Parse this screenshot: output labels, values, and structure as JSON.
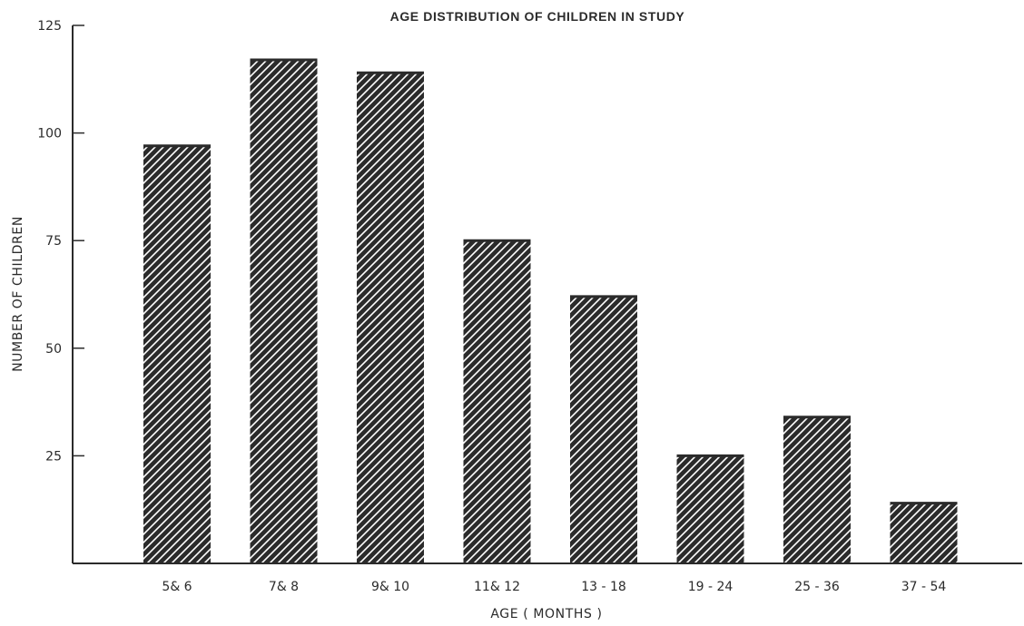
{
  "chart_data": {
    "type": "bar",
    "title": "AGE DISTRIBUTION OF CHILDREN IN STUDY",
    "xlabel": "AGE ( MONTHS )",
    "ylabel": "NUMBER OF CHILDREN",
    "categories": [
      "5& 6",
      "7& 8",
      "9& 10",
      "11& 12",
      "13 - 18",
      "19 - 24",
      "25 - 36",
      "37 - 54"
    ],
    "values": [
      97,
      117,
      114,
      75,
      62,
      25,
      34,
      14
    ],
    "ylim": [
      0,
      125
    ],
    "yticks": [
      25,
      50,
      75,
      100,
      125
    ],
    "grid": false,
    "bar_fill": "diagonal hatch",
    "colors": {
      "ink": "#2b2b2b",
      "paper": "#ffffff"
    }
  }
}
